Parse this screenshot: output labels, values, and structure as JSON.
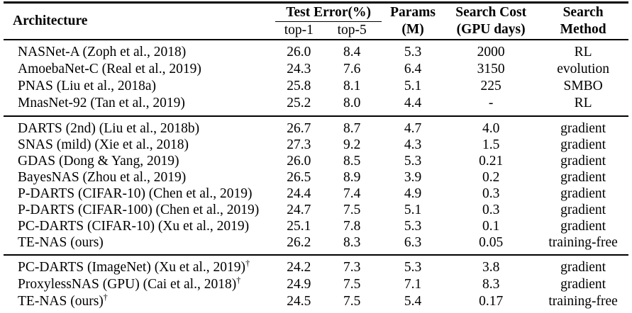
{
  "colors": {
    "text": "#000000",
    "rule": "#000000",
    "background": "#ffffff"
  },
  "table": {
    "header": {
      "architecture": "Architecture",
      "test_error": "Test Error(%)",
      "top1": "top-1",
      "top5": "top-5",
      "params": [
        "Params",
        "(M)"
      ],
      "search_cost": [
        "Search Cost",
        "(GPU days)"
      ],
      "search_method": [
        "Search",
        "Method"
      ]
    },
    "groups": [
      {
        "rows": [
          {
            "name": "NASNet-A (Zoph et al., 2018)",
            "top1": "26.0",
            "top5": "8.4",
            "params": "5.3",
            "cost": "2000",
            "method": "RL"
          },
          {
            "name": "AmoebaNet-C (Real et al., 2019)",
            "top1": "24.3",
            "top5": "7.6",
            "params": "6.4",
            "cost": "3150",
            "method": "evolution"
          },
          {
            "name": "PNAS (Liu et al., 2018a)",
            "top1": "25.8",
            "top5": "8.1",
            "params": "5.1",
            "cost": "225",
            "method": "SMBO"
          },
          {
            "name": "MnasNet-92 (Tan et al., 2019)",
            "top1": "25.2",
            "top5": "8.0",
            "params": "4.4",
            "cost": "-",
            "method": "RL"
          }
        ]
      },
      {
        "rows": [
          {
            "name": "DARTS (2nd) (Liu et al., 2018b)",
            "top1": "26.7",
            "top5": "8.7",
            "params": "4.7",
            "cost": "4.0",
            "method": "gradient"
          },
          {
            "name": "SNAS (mild) (Xie et al., 2018)",
            "top1": "27.3",
            "top5": "9.2",
            "params": "4.3",
            "cost": "1.5",
            "method": "gradient"
          },
          {
            "name": "GDAS (Dong & Yang, 2019)",
            "top1": "26.0",
            "top5": "8.5",
            "params": "5.3",
            "cost": "0.21",
            "method": "gradient"
          },
          {
            "name": "BayesNAS (Zhou et al., 2019)",
            "top1": "26.5",
            "top5": "8.9",
            "params": "3.9",
            "cost": "0.2",
            "method": "gradient"
          },
          {
            "name": "P-DARTS (CIFAR-10) (Chen et al., 2019)",
            "top1": "24.4",
            "top5": "7.4",
            "params": "4.9",
            "cost": "0.3",
            "method": "gradient"
          },
          {
            "name": "P-DARTS (CIFAR-100) (Chen et al., 2019)",
            "top1": "24.7",
            "top5": "7.5",
            "params": "5.1",
            "cost": "0.3",
            "method": "gradient"
          },
          {
            "name": "PC-DARTS (CIFAR-10) (Xu et al., 2019)",
            "top1": "25.1",
            "top5": "7.8",
            "params": "5.3",
            "cost": "0.1",
            "method": "gradient"
          },
          {
            "name": "TE-NAS (ours)",
            "top1": "26.2",
            "top5": "8.3",
            "params": "6.3",
            "cost": "0.05",
            "method": "training-free"
          }
        ]
      },
      {
        "rows": [
          {
            "name": "PC-DARTS (ImageNet) (Xu et al., 2019)",
            "dagger": "†",
            "top1": "24.2",
            "top5": "7.3",
            "params": "5.3",
            "cost": "3.8",
            "method": "gradient"
          },
          {
            "name": "ProxylessNAS (GPU) (Cai et al., 2018)",
            "dagger": "†",
            "top1": "24.9",
            "top5": "7.5",
            "params": "7.1",
            "cost": "8.3",
            "method": "gradient"
          },
          {
            "name": "TE-NAS (ours)",
            "dagger": "†",
            "top1": "24.5",
            "top5": "7.5",
            "params": "5.4",
            "cost": "0.17",
            "method": "training-free"
          }
        ]
      }
    ]
  }
}
